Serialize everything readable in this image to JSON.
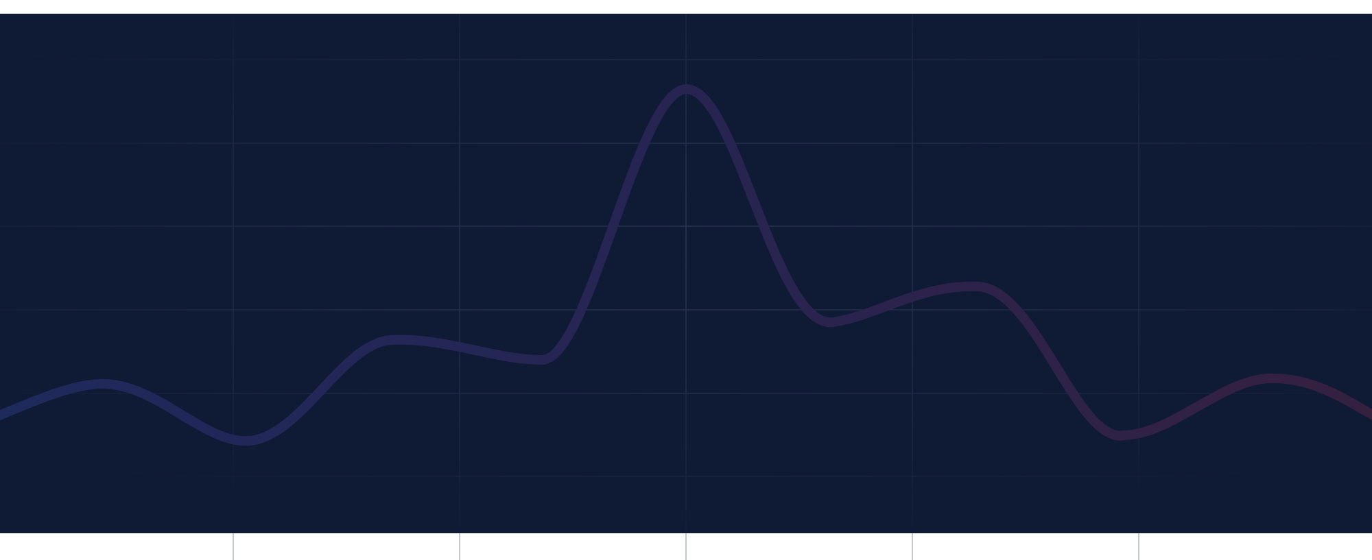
{
  "colors": {
    "page_background": "#ffffff",
    "panel_background": "#0f1a35",
    "grid_line": "#2a3553",
    "grid_line_faint": "#1e2a48",
    "wave_start": "#1e2a5c",
    "wave_mid": "#272452",
    "wave_end": "#35203f"
  },
  "decor": {
    "shape": "wave-line",
    "grid": true
  }
}
